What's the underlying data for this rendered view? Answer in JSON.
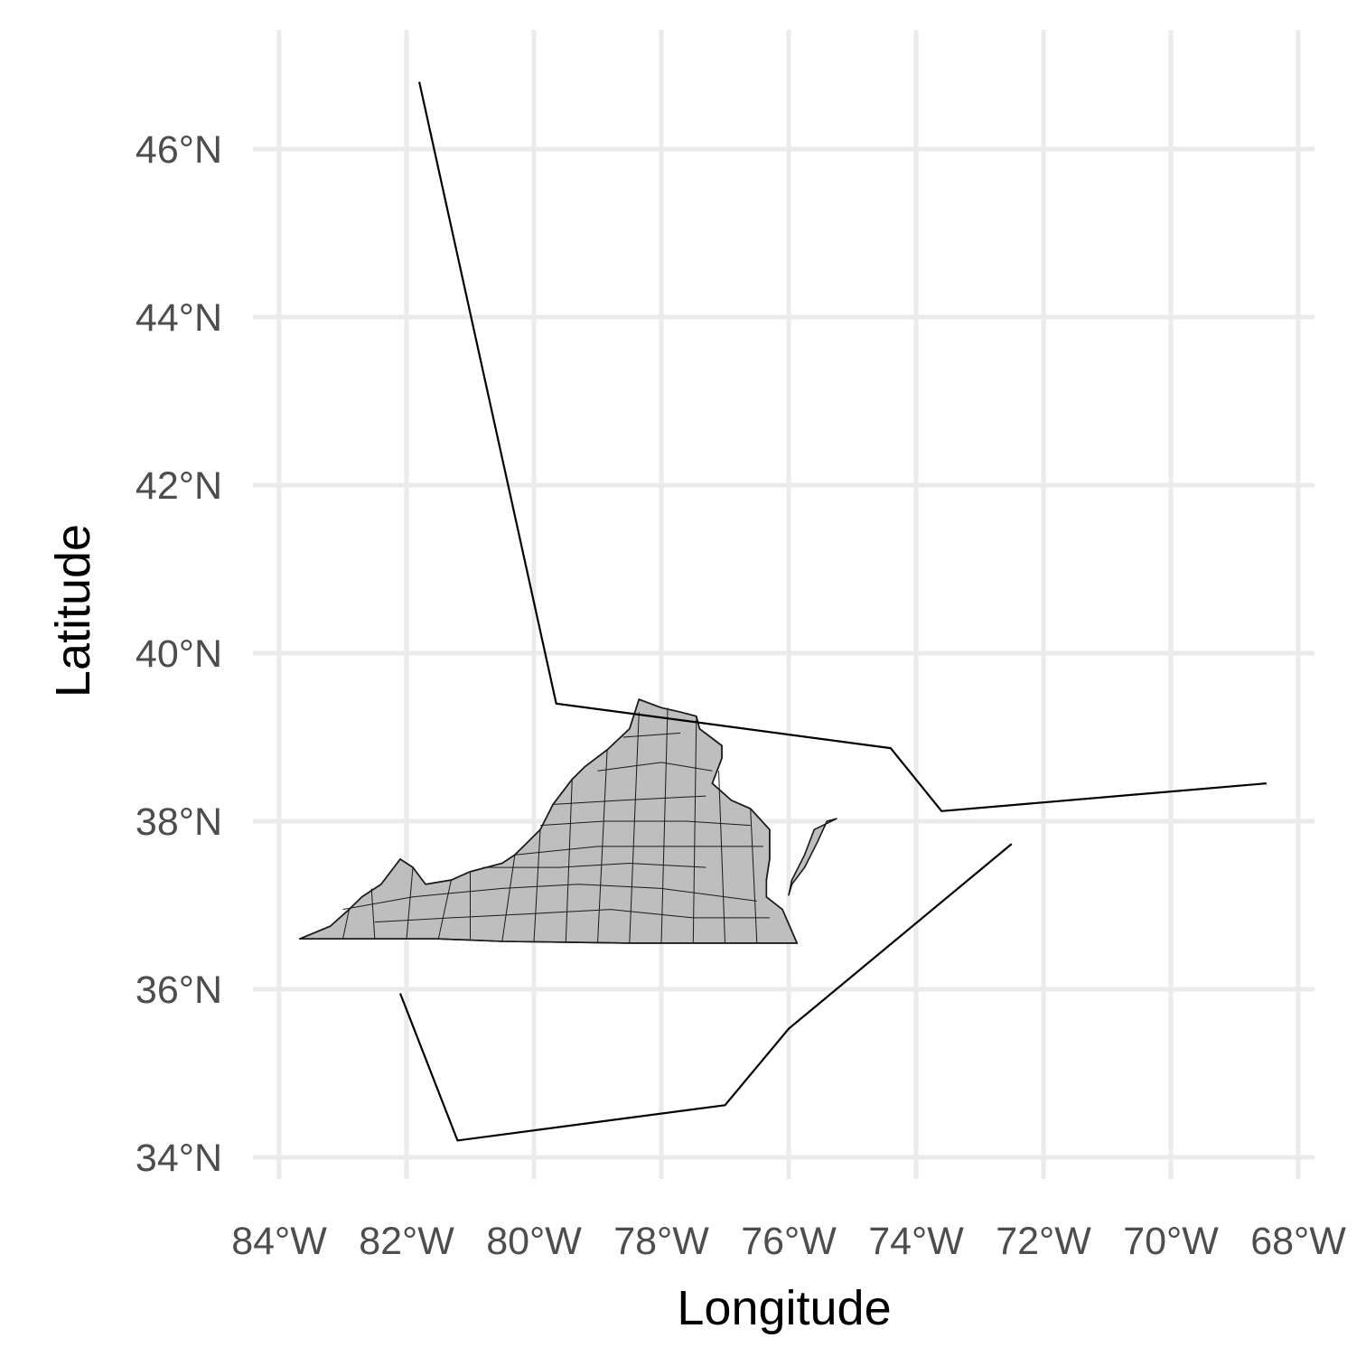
{
  "chart_data": {
    "type": "map",
    "xlabel": "Longitude",
    "ylabel": "Latitude",
    "xlim": [
      -84,
      -68
    ],
    "ylim": [
      34,
      46
    ],
    "x_ticks": [
      -84,
      -82,
      -80,
      -78,
      -76,
      -74,
      -72,
      -70,
      -68
    ],
    "x_tick_labels": [
      "84°W",
      "82°W",
      "80°W",
      "78°W",
      "76°W",
      "74°W",
      "72°W",
      "70°W",
      "68°W"
    ],
    "y_ticks": [
      34,
      36,
      38,
      40,
      42,
      44,
      46
    ],
    "y_tick_labels": [
      "34°N",
      "36°N",
      "38°N",
      "40°N",
      "42°N",
      "44°N",
      "46°N"
    ],
    "grid": true,
    "fill_color": "#bebebe",
    "gridline_color": "#ebebeb",
    "state_outline": [
      [
        -83.68,
        36.6
      ],
      [
        -83.2,
        36.75
      ],
      [
        -82.9,
        36.95
      ],
      [
        -82.7,
        37.1
      ],
      [
        -82.4,
        37.25
      ],
      [
        -82.1,
        37.55
      ],
      [
        -81.9,
        37.45
      ],
      [
        -81.7,
        37.25
      ],
      [
        -81.3,
        37.3
      ],
      [
        -81.0,
        37.4
      ],
      [
        -80.5,
        37.5
      ],
      [
        -80.3,
        37.6
      ],
      [
        -79.9,
        37.9
      ],
      [
        -79.7,
        38.2
      ],
      [
        -79.4,
        38.5
      ],
      [
        -79.2,
        38.65
      ],
      [
        -78.85,
        38.85
      ],
      [
        -78.5,
        39.1
      ],
      [
        -78.35,
        39.45
      ],
      [
        -78.0,
        39.35
      ],
      [
        -77.7,
        39.3
      ],
      [
        -77.45,
        39.25
      ],
      [
        -77.4,
        39.1
      ],
      [
        -77.05,
        38.9
      ],
      [
        -77.05,
        38.75
      ],
      [
        -77.2,
        38.45
      ],
      [
        -76.9,
        38.25
      ],
      [
        -76.6,
        38.15
      ],
      [
        -76.3,
        37.9
      ],
      [
        -76.3,
        37.55
      ],
      [
        -76.35,
        37.3
      ],
      [
        -76.35,
        37.1
      ],
      [
        -76.1,
        36.95
      ],
      [
        -75.87,
        36.55
      ],
      [
        -76.5,
        36.55
      ],
      [
        -77.5,
        36.55
      ],
      [
        -78.5,
        36.55
      ],
      [
        -79.5,
        36.56
      ],
      [
        -80.5,
        36.57
      ],
      [
        -81.5,
        36.6
      ],
      [
        -82.5,
        36.6
      ],
      [
        -83.68,
        36.6
      ]
    ],
    "eastern_shore_outline": [
      [
        -75.25,
        38.03
      ],
      [
        -75.6,
        37.9
      ],
      [
        -75.75,
        37.6
      ],
      [
        -75.95,
        37.3
      ],
      [
        -76.0,
        37.12
      ],
      [
        -75.95,
        37.25
      ],
      [
        -75.75,
        37.45
      ],
      [
        -75.55,
        37.75
      ],
      [
        -75.4,
        38.0
      ],
      [
        -75.25,
        38.03
      ]
    ],
    "county_lines": [
      [
        [
          -83.0,
          36.6
        ],
        [
          -82.9,
          36.95
        ]
      ],
      [
        [
          -82.5,
          36.6
        ],
        [
          -82.55,
          37.2
        ]
      ],
      [
        [
          -82.0,
          36.6
        ],
        [
          -81.9,
          37.45
        ]
      ],
      [
        [
          -81.5,
          36.6
        ],
        [
          -81.3,
          37.3
        ]
      ],
      [
        [
          -81.0,
          36.6
        ],
        [
          -81.0,
          37.4
        ]
      ],
      [
        [
          -80.5,
          36.57
        ],
        [
          -80.3,
          37.6
        ]
      ],
      [
        [
          -80.0,
          36.56
        ],
        [
          -79.9,
          37.9
        ]
      ],
      [
        [
          -79.5,
          36.56
        ],
        [
          -79.4,
          38.5
        ]
      ],
      [
        [
          -79.0,
          36.55
        ],
        [
          -78.85,
          38.85
        ]
      ],
      [
        [
          -78.5,
          36.55
        ],
        [
          -78.35,
          39.3
        ]
      ],
      [
        [
          -78.0,
          36.55
        ],
        [
          -77.9,
          39.35
        ]
      ],
      [
        [
          -77.5,
          36.55
        ],
        [
          -77.45,
          39.25
        ]
      ],
      [
        [
          -77.0,
          36.55
        ],
        [
          -77.1,
          38.6
        ]
      ],
      [
        [
          -76.5,
          36.55
        ],
        [
          -76.6,
          38.15
        ]
      ],
      [
        [
          -83.0,
          36.95
        ],
        [
          -81.9,
          37.1
        ],
        [
          -80.5,
          37.2
        ],
        [
          -79.3,
          37.25
        ],
        [
          -78.0,
          37.2
        ],
        [
          -76.5,
          37.05
        ]
      ],
      [
        [
          -80.3,
          37.6
        ],
        [
          -79.0,
          37.7
        ],
        [
          -77.8,
          37.7
        ],
        [
          -76.4,
          37.7
        ]
      ],
      [
        [
          -79.7,
          38.2
        ],
        [
          -78.6,
          38.25
        ],
        [
          -77.3,
          38.3
        ]
      ],
      [
        [
          -79.0,
          38.6
        ],
        [
          -78.0,
          38.7
        ],
        [
          -77.2,
          38.6
        ]
      ],
      [
        [
          -82.5,
          36.8
        ],
        [
          -81.3,
          36.85
        ],
        [
          -80.0,
          36.9
        ],
        [
          -78.8,
          36.95
        ],
        [
          -77.5,
          36.85
        ],
        [
          -76.3,
          36.85
        ]
      ],
      [
        [
          -80.8,
          37.45
        ],
        [
          -79.6,
          37.45
        ],
        [
          -78.5,
          37.5
        ],
        [
          -77.3,
          37.45
        ]
      ],
      [
        [
          -79.9,
          37.95
        ],
        [
          -78.9,
          38.0
        ],
        [
          -77.6,
          38.0
        ],
        [
          -76.6,
          37.95
        ]
      ],
      [
        [
          -78.6,
          39.0
        ],
        [
          -77.7,
          39.05
        ]
      ]
    ],
    "route_lines": [
      [
        [
          -81.8,
          46.8
        ],
        [
          -79.65,
          39.4
        ],
        [
          -74.4,
          38.87
        ],
        [
          -73.6,
          38.12
        ],
        [
          -68.5,
          38.45
        ]
      ],
      [
        [
          -82.1,
          35.95
        ],
        [
          -81.2,
          34.2
        ],
        [
          -77.0,
          34.62
        ],
        [
          -76.0,
          35.53
        ],
        [
          -72.5,
          37.73
        ]
      ]
    ]
  }
}
